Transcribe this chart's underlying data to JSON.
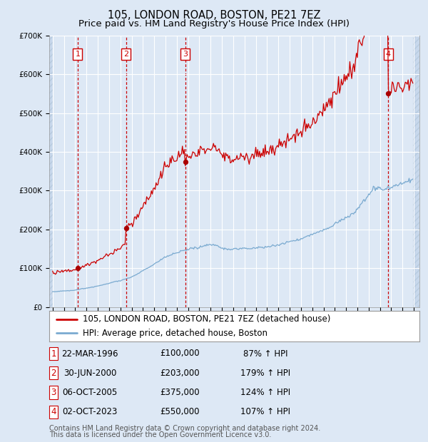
{
  "title": "105, LONDON ROAD, BOSTON, PE21 7EZ",
  "subtitle": "Price paid vs. HM Land Registry's House Price Index (HPI)",
  "ylim": [
    0,
    700000
  ],
  "xlim_start": 1993.7,
  "xlim_end": 2026.5,
  "yticks": [
    0,
    100000,
    200000,
    300000,
    400000,
    500000,
    600000,
    700000
  ],
  "ytick_labels": [
    "£0",
    "£100K",
    "£200K",
    "£300K",
    "£400K",
    "£500K",
    "£600K",
    "£700K"
  ],
  "bg_color": "#dde8f5",
  "grid_color": "#ffffff",
  "red_line_color": "#cc0000",
  "blue_line_color": "#7aaad0",
  "sale_marker_color": "#aa0000",
  "vline_color": "#cc0000",
  "transaction_vlines": [
    1996.22,
    2000.5,
    2005.76,
    2023.75
  ],
  "transaction_labels": [
    "1",
    "2",
    "3",
    "4"
  ],
  "transaction_prices": [
    100000,
    203000,
    375000,
    550000
  ],
  "transaction_dates_str": [
    "22-MAR-1996",
    "30-JUN-2000",
    "06-OCT-2005",
    "02-OCT-2023"
  ],
  "transaction_pct": [
    "87%",
    "179%",
    "124%",
    "107%"
  ],
  "legend_red_label": "105, LONDON ROAD, BOSTON, PE21 7EZ (detached house)",
  "legend_blue_label": "HPI: Average price, detached house, Boston",
  "footer_line1": "Contains HM Land Registry data © Crown copyright and database right 2024.",
  "footer_line2": "This data is licensed under the Open Government Licence v3.0.",
  "title_fontsize": 10.5,
  "subtitle_fontsize": 9.5,
  "tick_fontsize": 7.5,
  "legend_fontsize": 8.5,
  "table_fontsize": 8.5,
  "footer_fontsize": 7.0
}
